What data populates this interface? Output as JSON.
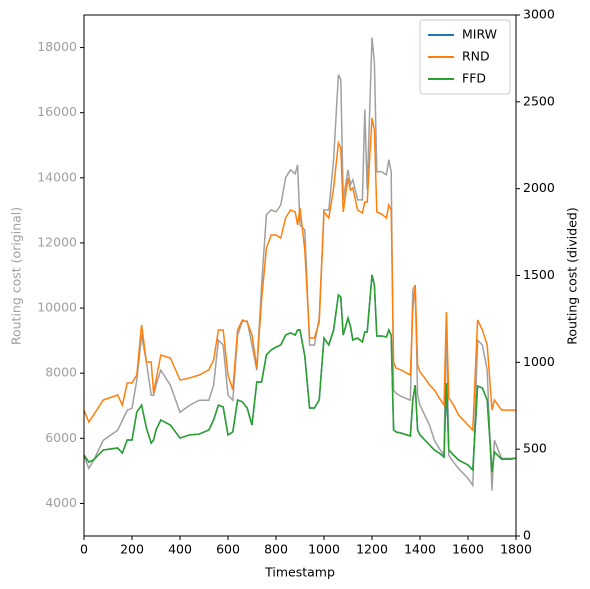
{
  "chart_data": {
    "type": "line",
    "xlabel": "Timestamp",
    "ylabel": "Routing cost (original)",
    "y2label": "Routing cost (divided)",
    "ylabel_color": "#a0a0a0",
    "x": [
      0,
      20,
      40,
      80,
      140,
      160,
      180,
      200,
      220,
      240,
      260,
      280,
      290,
      300,
      320,
      360,
      400,
      440,
      480,
      520,
      540,
      560,
      580,
      600,
      620,
      640,
      660,
      680,
      700,
      720,
      740,
      760,
      780,
      800,
      820,
      840,
      860,
      880,
      890,
      900,
      920,
      940,
      960,
      980,
      1000,
      1020,
      1040,
      1060,
      1070,
      1080,
      1100,
      1110,
      1120,
      1140,
      1160,
      1170,
      1180,
      1200,
      1210,
      1220,
      1240,
      1260,
      1270,
      1280,
      1290,
      1300,
      1320,
      1360,
      1370,
      1380,
      1390,
      1400,
      1420,
      1440,
      1460,
      1480,
      1500,
      1510,
      1520,
      1540,
      1560,
      1600,
      1620,
      1640,
      1660,
      1680,
      1700,
      1710,
      1740,
      1780,
      1800
    ],
    "xlim": [
      0,
      1800
    ],
    "xticks": [
      0,
      200,
      400,
      600,
      800,
      1000,
      1200,
      1400,
      1600,
      1800
    ],
    "ylim": [
      3000,
      19000
    ],
    "yticks": [
      4000,
      6000,
      8000,
      10000,
      12000,
      14000,
      16000,
      18000
    ],
    "y2lim": [
      0,
      3000
    ],
    "y2ticks": [
      0,
      500,
      1000,
      1500,
      2000,
      2500,
      3000
    ],
    "legend": "upper right",
    "series": [
      {
        "color": "#a0a0a0",
        "axis": "y",
        "values": [
          5477,
          5077,
          5323,
          5938,
          6246,
          6554,
          6862,
          6923,
          7785,
          9169,
          8338,
          7323,
          7323,
          7631,
          8092,
          7631,
          6800,
          7015,
          7169,
          7169,
          7631,
          9015,
          8862,
          7323,
          7169,
          9169,
          9600,
          9600,
          8862,
          8092,
          10708,
          12862,
          13015,
          12954,
          13169,
          14000,
          14246,
          14123,
          14400,
          12554,
          12400,
          8862,
          8862,
          9692,
          13015,
          13015,
          14554,
          17169,
          17015,
          13323,
          14246,
          13785,
          13938,
          13323,
          13323,
          16092,
          13631,
          18308,
          17538,
          14185,
          14185,
          14092,
          14554,
          14185,
          7477,
          7385,
          7292,
          7169,
          10554,
          10708,
          7323,
          7015,
          6708,
          6400,
          5938,
          5692,
          5477,
          9692,
          5477,
          5262,
          5077,
          4769,
          4554,
          9015,
          8862,
          8092,
          4400,
          5938,
          5385,
          5385,
          5385
        ]
      },
      {
        "name": "MIRW",
        "color": "#1f77b4",
        "axis": "y2",
        "values": [
          466,
          426,
          438,
          495,
          507,
          478,
          553,
          553,
          714,
          754,
          622,
          535,
          553,
          610,
          668,
          639,
          564,
          582,
          587,
          610,
          668,
          754,
          743,
          582,
          599,
          783,
          772,
          737,
          639,
          887,
          887,
          1042,
          1071,
          1088,
          1100,
          1157,
          1169,
          1157,
          1186,
          1186,
          1036,
          737,
          737,
          783,
          1140,
          1100,
          1186,
          1388,
          1376,
          1157,
          1255,
          1209,
          1129,
          1140,
          1117,
          1175,
          1175,
          1503,
          1445,
          1152,
          1152,
          1146,
          1186,
          1157,
          610,
          599,
          593,
          576,
          783,
          869,
          610,
          582,
          553,
          524,
          495,
          478,
          455,
          881,
          495,
          466,
          438,
          409,
          380,
          864,
          852,
          783,
          369,
          484,
          443,
          443,
          449
        ]
      },
      {
        "name": "RND",
        "color": "#ff7f0e",
        "axis": "y2",
        "values": [
          725,
          656,
          697,
          783,
          812,
          754,
          881,
          881,
          927,
          1215,
          1002,
          1002,
          823,
          898,
          1042,
          1025,
          898,
          910,
          927,
          956,
          1013,
          1186,
          1186,
          927,
          841,
          1186,
          1244,
          1232,
          1157,
          967,
          1359,
          1658,
          1733,
          1733,
          1716,
          1831,
          1877,
          1866,
          1791,
          1889,
          1647,
          1140,
          1140,
          1232,
          1866,
          1831,
          2004,
          2263,
          2234,
          1866,
          2061,
          1992,
          2004,
          1877,
          1860,
          1923,
          1923,
          2407,
          2338,
          1866,
          1854,
          1831,
          1906,
          1877,
          1002,
          967,
          956,
          927,
          1301,
          1445,
          985,
          944,
          910,
          869,
          841,
          795,
          754,
          1290,
          795,
          754,
          697,
          639,
          610,
          1244,
          1186,
          1100,
          725,
          783,
          725,
          725,
          725
        ]
      },
      {
        "name": "FFD",
        "color": "#2ca02c",
        "axis": "y2",
        "values": [
          466,
          426,
          438,
          495,
          507,
          478,
          553,
          553,
          714,
          754,
          622,
          535,
          553,
          610,
          668,
          639,
          564,
          582,
          587,
          610,
          668,
          754,
          743,
          582,
          599,
          783,
          772,
          737,
          639,
          887,
          887,
          1042,
          1071,
          1088,
          1100,
          1157,
          1169,
          1157,
          1186,
          1186,
          1036,
          737,
          737,
          783,
          1140,
          1100,
          1186,
          1388,
          1376,
          1157,
          1255,
          1209,
          1129,
          1140,
          1117,
          1175,
          1175,
          1503,
          1445,
          1152,
          1152,
          1146,
          1186,
          1157,
          610,
          599,
          593,
          576,
          783,
          869,
          610,
          582,
          553,
          524,
          495,
          478,
          455,
          881,
          495,
          466,
          438,
          409,
          380,
          864,
          852,
          783,
          369,
          484,
          443,
          443,
          449
        ]
      }
    ]
  }
}
